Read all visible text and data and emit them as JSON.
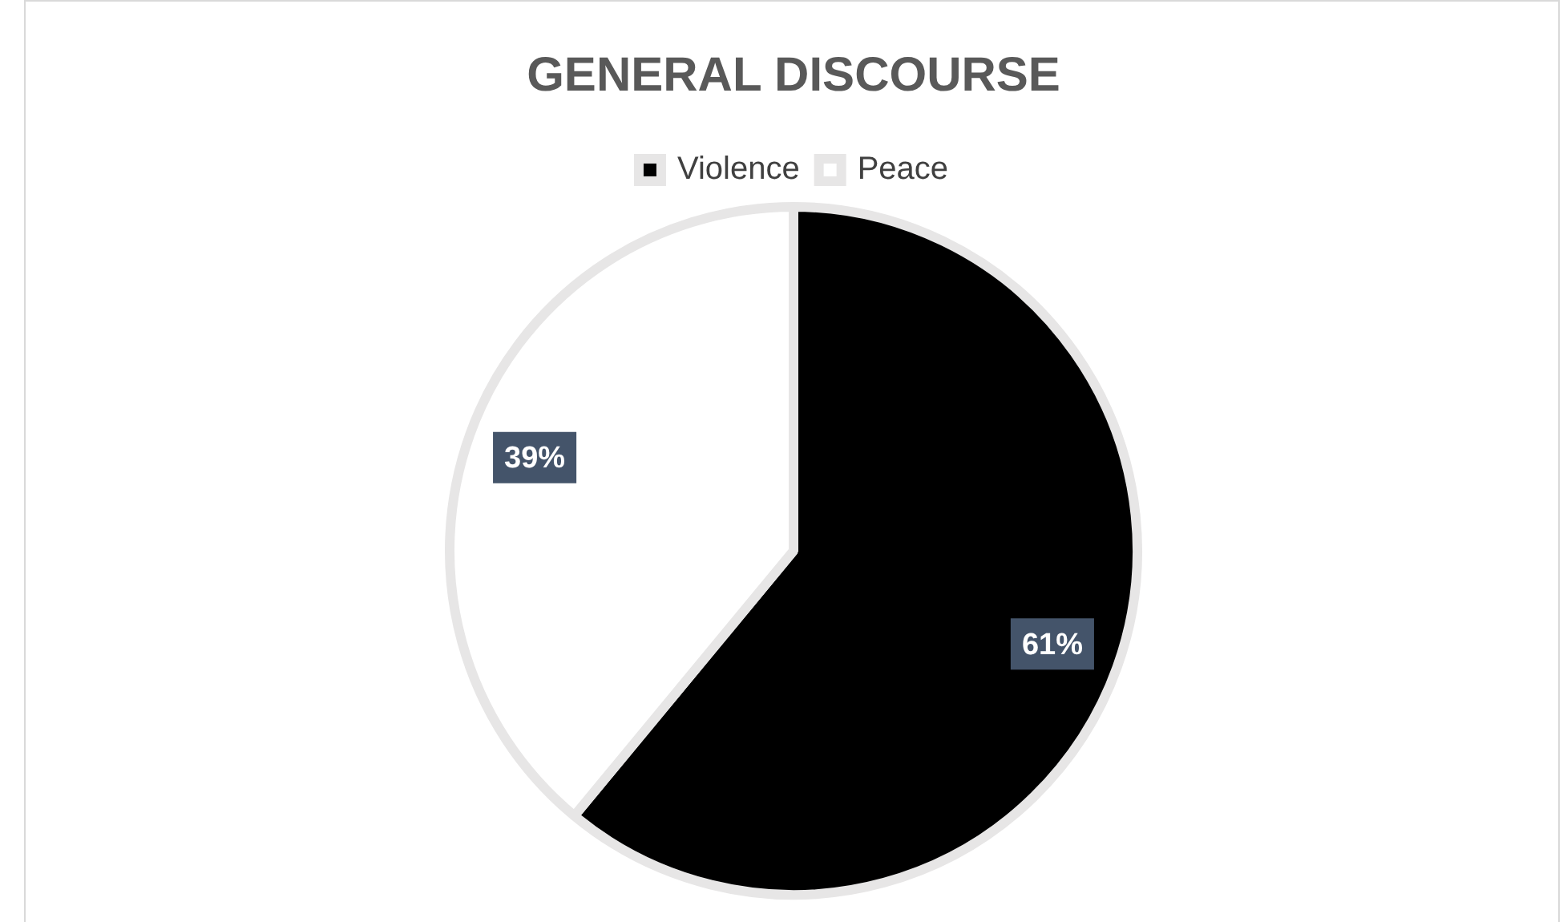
{
  "chart_data": {
    "type": "pie",
    "title": "GENERAL DISCOURSE",
    "categories": [
      "Violence",
      "Peace"
    ],
    "values": [
      61,
      39
    ],
    "colors": [
      "#000000",
      "#ffffff"
    ],
    "value_labels": [
      "61%",
      "39%"
    ],
    "legend": "top"
  }
}
